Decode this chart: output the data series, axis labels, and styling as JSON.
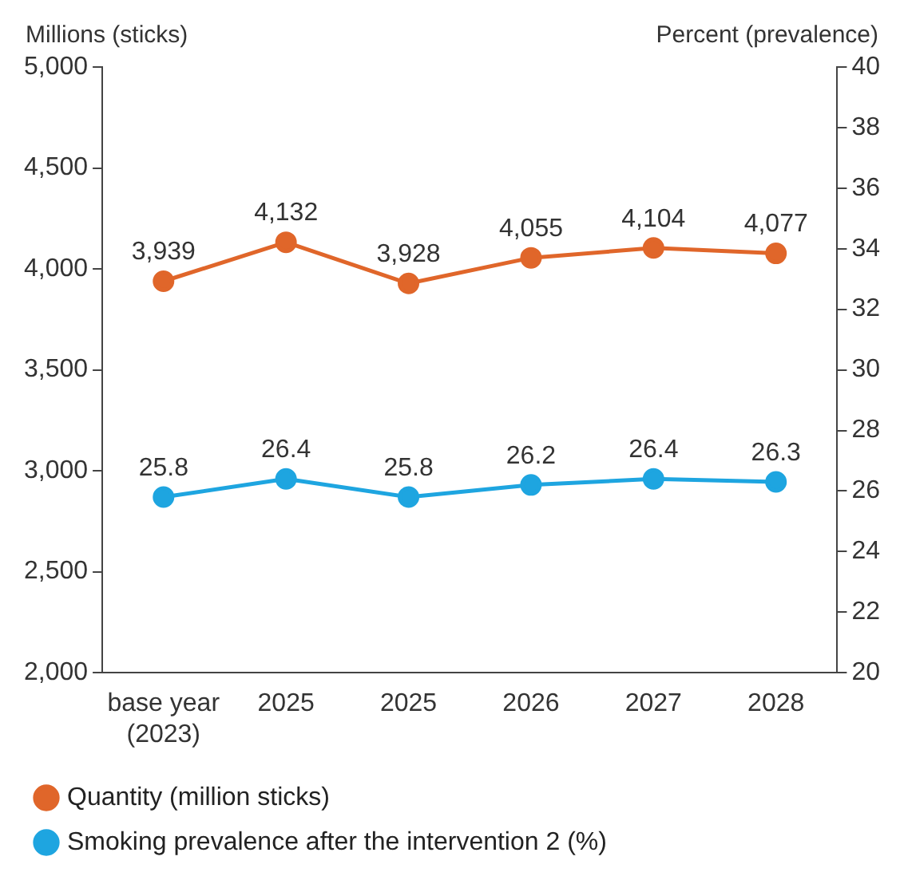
{
  "chart_data": {
    "type": "line",
    "ylabel": "Millions (sticks)",
    "y2label": "Percent (prevalence)",
    "categories": [
      "base year\n(2023)",
      "2025",
      "2025",
      "2026",
      "2027",
      "2028"
    ],
    "series": [
      {
        "name": "Quantity (million sticks)",
        "color": "#e0662a",
        "values": [
          3939,
          4132,
          3928,
          4055,
          4104,
          4077
        ],
        "value_labels": [
          "3,939",
          "4,132",
          "3,928",
          "4,055",
          "4,104",
          "4,077"
        ]
      },
      {
        "name": "Smoking prevalence after the intervention 2 (%)",
        "color": "#1ea5e0",
        "axis": "y2",
        "values": [
          25.8,
          26.4,
          25.8,
          26.2,
          26.4,
          26.3
        ],
        "value_labels": [
          "25.8",
          "26.4",
          "25.8",
          "26.2",
          "26.4",
          "26.3"
        ]
      }
    ],
    "ylim": [
      2000,
      5000
    ],
    "yticks": [
      {
        "value": 2000,
        "label": "2,000"
      },
      {
        "value": 2500,
        "label": "2,500"
      },
      {
        "value": 3000,
        "label": "3,000"
      },
      {
        "value": 3500,
        "label": "3,500"
      },
      {
        "value": 4000,
        "label": "4,000"
      },
      {
        "value": 4500,
        "label": "4,500"
      },
      {
        "value": 5000,
        "label": "5,000"
      }
    ],
    "y2lim": [
      20,
      40
    ],
    "y2ticks": [
      20,
      22,
      24,
      26,
      28,
      30,
      32,
      34,
      36,
      38,
      40
    ],
    "grid": false,
    "legend": "bottom",
    "marker": "circle",
    "line_style": "solid"
  }
}
